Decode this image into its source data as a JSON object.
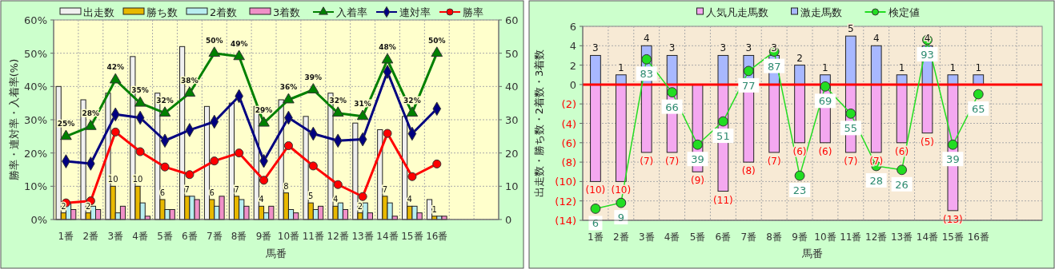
{
  "chart_data": [
    {
      "type": "bar",
      "xlabel": "馬番",
      "ylabel": "勝率・連対率・入着率(%)",
      "categories": [
        "1番",
        "2番",
        "3番",
        "4番",
        "5番",
        "6番",
        "7番",
        "8番",
        "9番",
        "10番",
        "11番",
        "12番",
        "13番",
        "14番",
        "15番",
        "16番",
        null,
        null
      ],
      "series": [
        {
          "name": "出走数",
          "axis": "y2",
          "color": "#f0f0f0",
          "values": [
            40,
            36,
            38,
            49,
            38,
            52,
            34,
            35,
            34,
            36,
            31,
            38,
            29,
            27,
            31,
            6,
            null,
            null
          ]
        },
        {
          "name": "勝ち数",
          "axis": "y2",
          "color": "#e8b800",
          "values": [
            2,
            2,
            10,
            10,
            6,
            7,
            6,
            7,
            4,
            8,
            5,
            4,
            2,
            7,
            4,
            1,
            null,
            null
          ],
          "value_labels": [
            "2",
            "2",
            "10",
            "10",
            "6",
            "7",
            "6",
            "7",
            "4",
            "8",
            "5",
            "4",
            "2",
            "7",
            "4",
            "1",
            null,
            null
          ]
        },
        {
          "name": "2着数",
          "axis": "y2",
          "color": "#b8eef0",
          "values": [
            5,
            4,
            2,
            5,
            3,
            7,
            4,
            6,
            2,
            3,
            3,
            5,
            5,
            5,
            4,
            1,
            null,
            null
          ]
        },
        {
          "name": "3着数",
          "axis": "y2",
          "color": "#f090c8",
          "values": [
            3,
            3,
            4,
            1,
            3,
            6,
            7,
            4,
            4,
            2,
            4,
            3,
            2,
            1,
            2,
            1,
            null,
            null
          ]
        },
        {
          "name": "入着率",
          "type": "line",
          "axis": "y",
          "color": "#008000",
          "marker": "triangle",
          "values": [
            25,
            28,
            42,
            35,
            32,
            38,
            50,
            49,
            29,
            36,
            39,
            32,
            31,
            48,
            32,
            50,
            null,
            null
          ],
          "value_labels": [
            "25%",
            "28%",
            "42%",
            "35%",
            "32%",
            "38%",
            "50%",
            "49%",
            "29%",
            "36%",
            "39%",
            "32%",
            "31%",
            "48%",
            "32%",
            "50%",
            null,
            null
          ]
        },
        {
          "name": "連対率",
          "type": "line",
          "axis": "y",
          "color": "#000080",
          "marker": "diamond",
          "values": [
            17.5,
            16.8,
            31.6,
            30.6,
            23.7,
            26.9,
            29.4,
            37.1,
            17.6,
            30.6,
            25.8,
            23.7,
            24.1,
            44.4,
            25.8,
            33.3,
            null,
            null
          ]
        },
        {
          "name": "勝率",
          "type": "line",
          "axis": "y",
          "color": "#ff0000",
          "marker": "circle",
          "values": [
            5,
            5.6,
            26.3,
            20.4,
            15.8,
            13.5,
            17.6,
            20,
            11.8,
            22.2,
            16.1,
            10.5,
            6.9,
            25.9,
            12.9,
            16.7,
            null,
            null
          ]
        }
      ],
      "ylim": [
        0,
        60
      ],
      "yticks": [
        {
          "value": 0,
          "label": "0%"
        },
        {
          "value": 10,
          "label": "10%"
        },
        {
          "value": 20,
          "label": "20%"
        },
        {
          "value": 30,
          "label": "30%"
        },
        {
          "value": 40,
          "label": "40%"
        },
        {
          "value": 50,
          "label": "50%"
        },
        {
          "value": 60,
          "label": "60%"
        }
      ],
      "y2lim": [
        0,
        60
      ],
      "y2ticks": [
        0,
        10,
        20,
        30,
        40,
        50,
        60
      ],
      "grid": true,
      "legend": "top"
    },
    {
      "type": "bar",
      "stacked": true,
      "xlabel": "馬番",
      "ylabel": "出走数・勝ち数・2着数・3着数",
      "categories": [
        "1番",
        "2番",
        "3番",
        "4番",
        "5番",
        "6番",
        "7番",
        "8番",
        "9番",
        "10番",
        "11番",
        "12番",
        "13番",
        "14番",
        "15番",
        "16番",
        null,
        null
      ],
      "series": [
        {
          "name": "人気凡走馬数",
          "axis": "y",
          "color": "#f4a8f0",
          "values": [
            -10,
            -10,
            -7,
            -7,
            -9,
            -11,
            -8,
            -7,
            -6,
            -6,
            -7,
            -7,
            -6,
            -5,
            -13,
            null,
            null,
            null
          ],
          "value_labels": [
            "(10)",
            "(10)",
            "(7)",
            "(7)",
            "(9)",
            "(11)",
            "(8)",
            "(7)",
            "(6)",
            "(6)",
            "(7)",
            "(7)",
            "(6)",
            "(5)",
            "(13)",
            null,
            null,
            null
          ]
        },
        {
          "name": "激走馬数",
          "axis": "y",
          "color": "#a8b8ff",
          "values": [
            3,
            1,
            4,
            3,
            null,
            3,
            3,
            3,
            2,
            1,
            5,
            4,
            1,
            4,
            1,
            1,
            null,
            null
          ],
          "value_labels": [
            "3",
            "1",
            "4",
            "3",
            null,
            "3",
            "3",
            "3",
            "2",
            "1",
            "5",
            "4",
            "1",
            "4",
            "1",
            "1",
            null,
            null
          ]
        },
        {
          "name": "検定値",
          "type": "line",
          "axis": "y2",
          "color": "#22dd22",
          "marker": "circle",
          "values": [
            6,
            9,
            83,
            66,
            39,
            51,
            77,
            87,
            23,
            69,
            55,
            28,
            26,
            93,
            39,
            65,
            null,
            null
          ],
          "value_labels": [
            "6",
            "9",
            "83",
            "66",
            "39",
            "51",
            "77",
            "87",
            "23",
            "69",
            "55",
            "28",
            "26",
            "93",
            "39",
            "65",
            null,
            null
          ]
        }
      ],
      "ylim": [
        -14,
        6
      ],
      "yticks": [
        {
          "value": -14,
          "label": "(14)"
        },
        {
          "value": -12,
          "label": "(12)"
        },
        {
          "value": -10,
          "label": "(10)"
        },
        {
          "value": -8,
          "label": "(8)"
        },
        {
          "value": -6,
          "label": "(6)"
        },
        {
          "value": -4,
          "label": "(4)"
        },
        {
          "value": -2,
          "label": "(2)"
        },
        0,
        2,
        4,
        6
      ],
      "y2lim": [
        0,
        100
      ],
      "ref_lines": [
        {
          "axis": "y",
          "value": 0,
          "color": "#ff0000"
        }
      ],
      "grid": true,
      "legend": "top"
    }
  ]
}
